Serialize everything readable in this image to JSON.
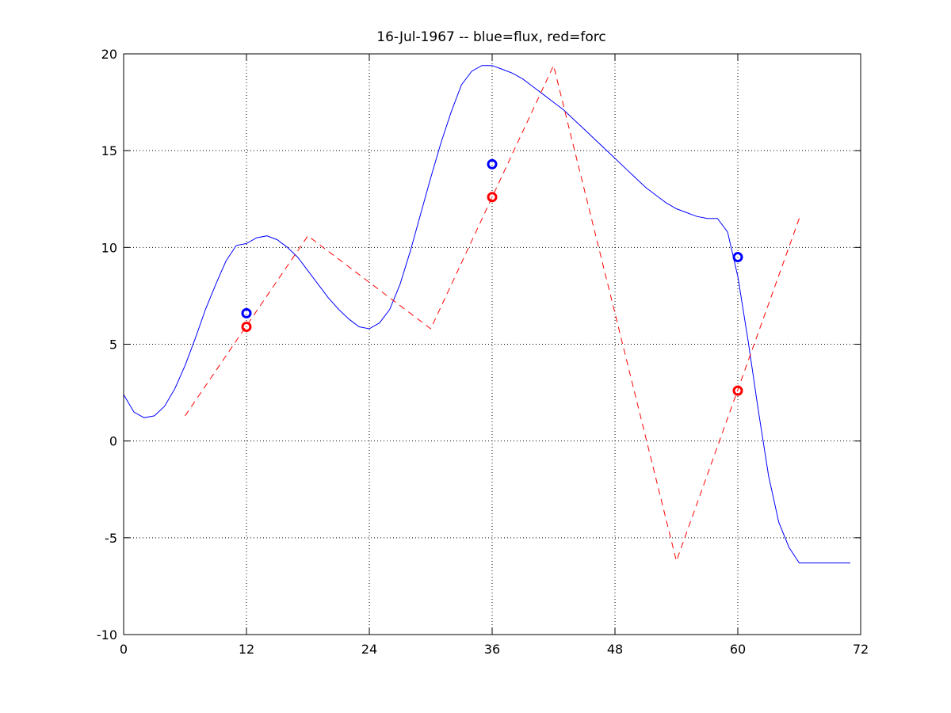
{
  "chart_data": {
    "type": "line",
    "title": "16-Jul-1967 -- blue=flux, red=forc",
    "xlabel": "",
    "ylabel": "",
    "xlim": [
      0,
      72
    ],
    "ylim": [
      -10,
      20
    ],
    "xticks": [
      0,
      12,
      24,
      36,
      48,
      60,
      72
    ],
    "yticks": [
      -10,
      -5,
      0,
      5,
      10,
      15,
      20
    ],
    "grid": true,
    "series": [
      {
        "color": "#0000ff",
        "style": "solid",
        "x": [
          0,
          1,
          2,
          3,
          4,
          5,
          6,
          7,
          8,
          9,
          10,
          11,
          12,
          13,
          14,
          15,
          16,
          17,
          18,
          19,
          20,
          21,
          22,
          23,
          24,
          25,
          26,
          27,
          28,
          29,
          30,
          31,
          32,
          33,
          34,
          35,
          36,
          37,
          38,
          39,
          40,
          41,
          42,
          43,
          44,
          45,
          46,
          47,
          48,
          49,
          50,
          51,
          52,
          53,
          54,
          55,
          56,
          57,
          58,
          59,
          60,
          61,
          62,
          63,
          64,
          65,
          66,
          67,
          68,
          69,
          70,
          71
        ],
        "y": [
          2.4,
          1.5,
          1.2,
          1.3,
          1.8,
          2.7,
          3.9,
          5.3,
          6.8,
          8.1,
          9.3,
          10.1,
          10.2,
          10.5,
          10.6,
          10.4,
          10.0,
          9.5,
          8.8,
          8.1,
          7.4,
          6.8,
          6.3,
          5.9,
          5.8,
          6.1,
          6.8,
          8.1,
          9.8,
          11.7,
          13.6,
          15.4,
          17.0,
          18.4,
          19.1,
          19.4,
          19.4,
          19.2,
          19.0,
          18.7,
          18.3,
          17.9,
          17.5,
          17.1,
          16.6,
          16.1,
          15.6,
          15.1,
          14.6,
          14.1,
          13.6,
          13.1,
          12.7,
          12.3,
          12.0,
          11.8,
          11.6,
          11.5,
          11.5,
          10.8,
          8.5,
          5.2,
          1.6,
          -1.8,
          -4.2,
          -5.5,
          -6.3,
          -6.3,
          -6.3,
          -6.3,
          -6.3,
          -6.3
        ]
      },
      {
        "color": "#ff0000",
        "style": "dashed",
        "x": [
          6,
          18,
          30,
          42,
          54,
          66
        ],
        "y": [
          1.3,
          10.6,
          5.8,
          19.4,
          -6.2,
          11.5
        ]
      },
      {
        "color": "#0000ff",
        "style": "markers",
        "marker": "circle",
        "x": [
          12,
          36,
          60
        ],
        "y": [
          6.6,
          14.3,
          9.5
        ]
      },
      {
        "color": "#ff0000",
        "style": "markers",
        "marker": "circle",
        "x": [
          12,
          36,
          60
        ],
        "y": [
          5.9,
          12.6,
          2.6
        ]
      }
    ]
  }
}
